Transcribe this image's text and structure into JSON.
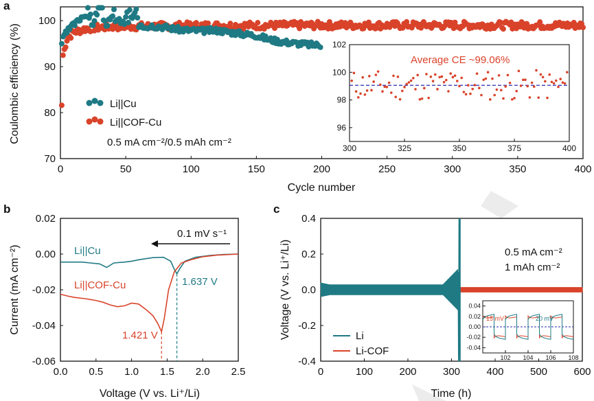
{
  "colors": {
    "li": "#1f7a84",
    "cof": "#d9432a",
    "avg_line": "#2a2ab0",
    "axis": "#111111"
  },
  "chart_data": [
    {
      "panel": "a",
      "type": "scatter",
      "xlabel": "Cycle number",
      "ylabel": "Coulombic efficiency (%)",
      "xlim": [
        0,
        400
      ],
      "ylim": [
        70,
        103
      ],
      "xticks": [
        "0",
        "50",
        "100",
        "150",
        "200",
        "250",
        "300",
        "350",
        "400"
      ],
      "yticks": [
        "70",
        "80",
        "90",
        "100"
      ],
      "legend": {
        "placement": "middle-left",
        "entries": [
          "Li||Cu",
          "Li||COF-Cu"
        ]
      },
      "condition": "0.5 mA cm⁻²/0.5 mAh cm⁻²",
      "series": [
        {
          "name": "Li||Cu",
          "color": "#1f7a84",
          "points": [
            [
              1,
              95.2
            ],
            [
              3,
              96.8
            ],
            [
              5,
              97.5
            ],
            [
              8,
              98.6
            ],
            [
              12,
              99.5
            ],
            [
              18,
              101.4
            ],
            [
              22,
              100.5
            ],
            [
              25,
              98.9
            ],
            [
              30,
              102.5
            ],
            [
              35,
              99.2
            ],
            [
              40,
              100.6
            ],
            [
              50,
              99.3
            ],
            [
              55,
              100.8
            ],
            [
              58,
              102.2
            ],
            [
              60,
              98.4
            ],
            [
              70,
              98.9
            ],
            [
              80,
              98.6
            ],
            [
              90,
              98.1
            ],
            [
              100,
              97.9
            ],
            [
              110,
              97.8
            ],
            [
              120,
              97.9
            ],
            [
              130,
              97.5
            ],
            [
              140,
              97.1
            ],
            [
              150,
              96.8
            ],
            [
              160,
              95.9
            ],
            [
              170,
              95.4
            ],
            [
              180,
              95.1
            ],
            [
              190,
              94.8
            ],
            [
              199,
              94.7
            ]
          ]
        },
        {
          "name": "Li||COF-Cu",
          "color": "#d9432a",
          "average_ce": "Average CE ~99.06%",
          "first_point": [
            1,
            81.6
          ],
          "trend": [
            [
              2,
              92.5
            ],
            [
              5,
              96.0
            ],
            [
              10,
              97.5
            ],
            [
              20,
              98.3
            ],
            [
              40,
              98.7
            ],
            [
              100,
              98.9
            ],
            [
              200,
              99.0
            ],
            [
              300,
              99.0
            ],
            [
              400,
              99.0
            ]
          ],
          "noise": 0.8
        }
      ],
      "inset": {
        "xlim": [
          300,
          400
        ],
        "ylim": [
          95,
          102
        ],
        "xticks": [
          "300",
          "325",
          "350",
          "375",
          "400"
        ],
        "yticks": [
          "96",
          "98",
          "100",
          "102"
        ],
        "average_ce": 99.06,
        "title": "Average CE ~99.06%"
      }
    },
    {
      "panel": "b",
      "type": "line",
      "xlabel": "Voltage (V vs. Li⁺/Li)",
      "ylabel": "Current (mA cm⁻²)",
      "xlim": [
        0,
        2.5
      ],
      "ylim": [
        -0.06,
        0.02
      ],
      "xticks": [
        "0.0",
        "0.5",
        "1.0",
        "1.5",
        "2.0",
        "2.5"
      ],
      "yticks": [
        "-0.06",
        "-0.04",
        "-0.02",
        "0.00",
        "0.02"
      ],
      "scan_rate": "0.1 mV s⁻¹",
      "series": [
        {
          "name": "Li||Cu",
          "color": "#1f7a84",
          "peak": "1.637 V",
          "points": [
            [
              0,
              -0.0045
            ],
            [
              0.3,
              -0.0045
            ],
            [
              0.55,
              -0.0055
            ],
            [
              0.65,
              -0.0075
            ],
            [
              0.75,
              -0.005
            ],
            [
              0.9,
              -0.0045
            ],
            [
              1.0,
              -0.004
            ],
            [
              1.1,
              -0.0032
            ],
            [
              1.3,
              -0.002
            ],
            [
              1.45,
              -0.0018
            ],
            [
              1.55,
              -0.004
            ],
            [
              1.6,
              -0.0085
            ],
            [
              1.637,
              -0.011
            ],
            [
              1.68,
              -0.008
            ],
            [
              1.75,
              -0.004
            ],
            [
              1.9,
              -0.0018
            ],
            [
              2.1,
              -0.0008
            ],
            [
              2.3,
              -0.0002
            ],
            [
              2.5,
              0.0
            ]
          ]
        },
        {
          "name": "Li||COF-Cu",
          "color": "#d9432a",
          "peak": "1.421 V",
          "points": [
            [
              0,
              -0.0225
            ],
            [
              0.1,
              -0.0235
            ],
            [
              0.2,
              -0.0243
            ],
            [
              0.35,
              -0.025
            ],
            [
              0.5,
              -0.026
            ],
            [
              0.6,
              -0.027
            ],
            [
              0.7,
              -0.0285
            ],
            [
              0.8,
              -0.0295
            ],
            [
              0.9,
              -0.029
            ],
            [
              1.0,
              -0.0275
            ],
            [
              1.1,
              -0.028
            ],
            [
              1.2,
              -0.031
            ],
            [
              1.3,
              -0.0345
            ],
            [
              1.37,
              -0.039
            ],
            [
              1.421,
              -0.0435
            ],
            [
              1.46,
              -0.036
            ],
            [
              1.52,
              -0.02
            ],
            [
              1.6,
              -0.01
            ],
            [
              1.7,
              -0.005
            ],
            [
              1.85,
              -0.003
            ],
            [
              2.0,
              -0.0015
            ],
            [
              2.2,
              -0.0006
            ],
            [
              2.5,
              0.0
            ]
          ]
        }
      ]
    },
    {
      "panel": "c",
      "type": "line",
      "xlabel": "Time (h)",
      "ylabel": "Voltage (V vs. Li⁺/Li)",
      "xlim": [
        0,
        600
      ],
      "ylim": [
        -0.4,
        0.4
      ],
      "xticks": [
        "0",
        "100",
        "200",
        "300",
        "400",
        "500",
        "600"
      ],
      "yticks": [
        "-0.4",
        "-0.2",
        "0.0",
        "0.2",
        "0.4"
      ],
      "conditions": [
        "0.5 mA cm⁻²",
        "1 mAh cm⁻²"
      ],
      "legend": {
        "placement": "bottom-left",
        "entries": [
          "Li",
          "Li-COF"
        ]
      },
      "series": [
        {
          "name": "Li",
          "color": "#1f7a84",
          "amplitude": 0.03,
          "failure_time_h": 315,
          "end_time_h": 320
        },
        {
          "name": "Li-COF",
          "color": "#d9432a",
          "amplitude": 0.015,
          "end_time_h": 600
        }
      ],
      "inset": {
        "xlim": [
          100,
          108
        ],
        "ylim": [
          -0.05,
          0.05
        ],
        "xticks": [
          "102",
          "104",
          "106",
          "108"
        ],
        "yticks": [
          "-0.04",
          "-0.02",
          "0.00",
          "0.02",
          "0.04"
        ],
        "labels": [
          "15 mV",
          "20 mV"
        ]
      }
    }
  ]
}
